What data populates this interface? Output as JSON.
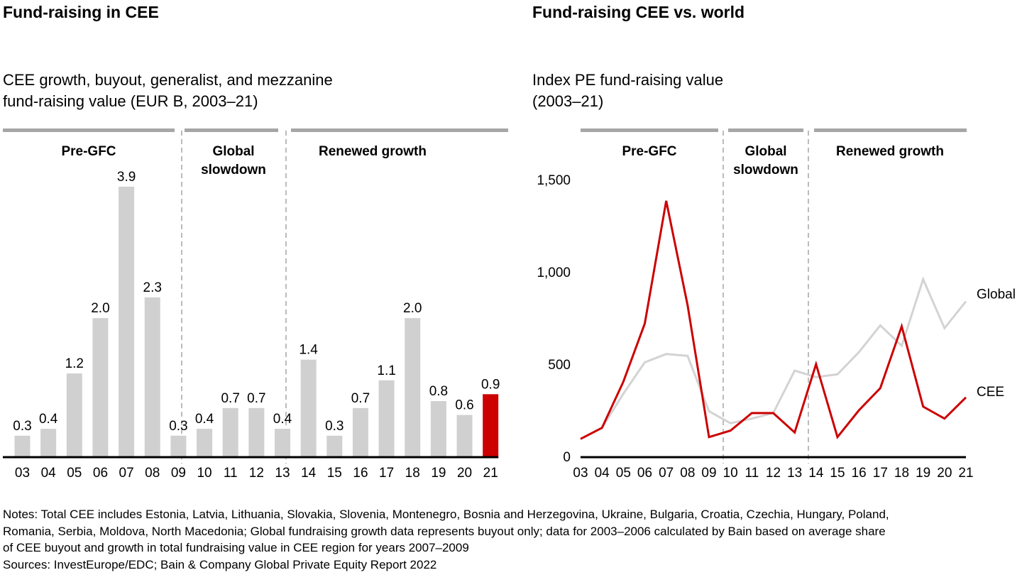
{
  "left_panel": {
    "title": "Fund-raising in CEE",
    "subtitle_line1": "CEE growth, buyout, generalist, and mezzanine",
    "subtitle_line2": "fund-raising value (EUR B, 2003–21)"
  },
  "right_panel": {
    "title": "Fund-raising CEE vs. world",
    "subtitle_line1": "Index PE fund-raising value",
    "subtitle_line2": "(2003–21)"
  },
  "periods": [
    {
      "name": "Pre-GFC",
      "lines": [
        "Pre-GFC"
      ],
      "from": "03",
      "to": "09"
    },
    {
      "name": "Global slowdown",
      "lines": [
        "Global",
        "slowdown"
      ],
      "from": "10",
      "to": "13"
    },
    {
      "name": "Renewed growth",
      "lines": [
        "Renewed growth"
      ],
      "from": "14",
      "to": "21"
    }
  ],
  "colors": {
    "bar": "#d0d0d0",
    "highlight": "#cc0000",
    "period_bar": "#a6a6a6",
    "global_line": "#d3d3d3",
    "cee_line": "#cc0000",
    "axis": "#000000",
    "divider": "#777777"
  },
  "chart_data": [
    {
      "type": "bar",
      "title": "Fund-raising in CEE",
      "subtitle": "CEE growth, buyout, generalist, and mezzanine fund-raising value (EUR B, 2003–21)",
      "categories": [
        "03",
        "04",
        "05",
        "06",
        "07",
        "08",
        "09",
        "10",
        "11",
        "12",
        "13",
        "14",
        "15",
        "16",
        "17",
        "18",
        "19",
        "20",
        "21"
      ],
      "values": [
        0.3,
        0.4,
        1.2,
        2.0,
        3.9,
        2.3,
        0.3,
        0.4,
        0.7,
        0.7,
        0.4,
        1.4,
        0.3,
        0.7,
        1.1,
        2.0,
        0.8,
        0.6,
        0.9
      ],
      "value_labels": [
        "0.3",
        "0.4",
        "1.2",
        "2.0",
        "3.9",
        "2.3",
        "0.3",
        "0.4",
        "0.7",
        "0.7",
        "0.4",
        "1.4",
        "0.3",
        "0.7",
        "1.1",
        "2.0",
        "0.8",
        "0.6",
        "0.9"
      ],
      "highlight_category": "21",
      "xlabel": "",
      "ylabel": "EUR B",
      "ylim": [
        0,
        3.9
      ],
      "grid": false,
      "annotations": [
        "Pre-GFC",
        "Global slowdown",
        "Renewed growth"
      ]
    },
    {
      "type": "line",
      "title": "Fund-raising CEE vs. world",
      "subtitle": "Index PE fund-raising value (2003–21)",
      "x": [
        "03",
        "04",
        "05",
        "06",
        "07",
        "08",
        "09",
        "10",
        "11",
        "12",
        "13",
        "14",
        "15",
        "16",
        "17",
        "18",
        "19",
        "20",
        "21"
      ],
      "series": [
        {
          "name": "Global",
          "values": [
            95,
            155,
            340,
            510,
            555,
            545,
            245,
            180,
            205,
            235,
            465,
            430,
            445,
            565,
            710,
            600,
            960,
            695,
            840
          ]
        },
        {
          "name": "CEE",
          "values": [
            95,
            155,
            405,
            720,
            1385,
            820,
            105,
            140,
            235,
            235,
            130,
            500,
            105,
            250,
            370,
            705,
            270,
            205,
            320
          ]
        }
      ],
      "yticks": [
        "0",
        "500",
        "1,000",
        "1,500"
      ],
      "ytick_values": [
        0,
        500,
        1000,
        1500
      ],
      "ylim": [
        0,
        1500
      ],
      "grid": false,
      "legend": "right, inline labels"
    }
  ],
  "notes": {
    "line1": "Notes: Total CEE includes Estonia, Latvia, Lithuania, Slovakia, Slovenia, Montenegro, Bosnia and Herzegovina, Ukraine, Bulgaria, Croatia, Czechia, Hungary, Poland,",
    "line2": "Romania, Serbia, Moldova, North Macedonia; Global fundraising growth data represents buyout only; data for 2003–2006 calculated by Bain based on average share",
    "line3": "of CEE buyout and growth in total fundraising value in CEE region for years 2007–2009",
    "sources": "Sources: InvestEurope/EDC; Bain & Company Global Private Equity Report 2022"
  }
}
